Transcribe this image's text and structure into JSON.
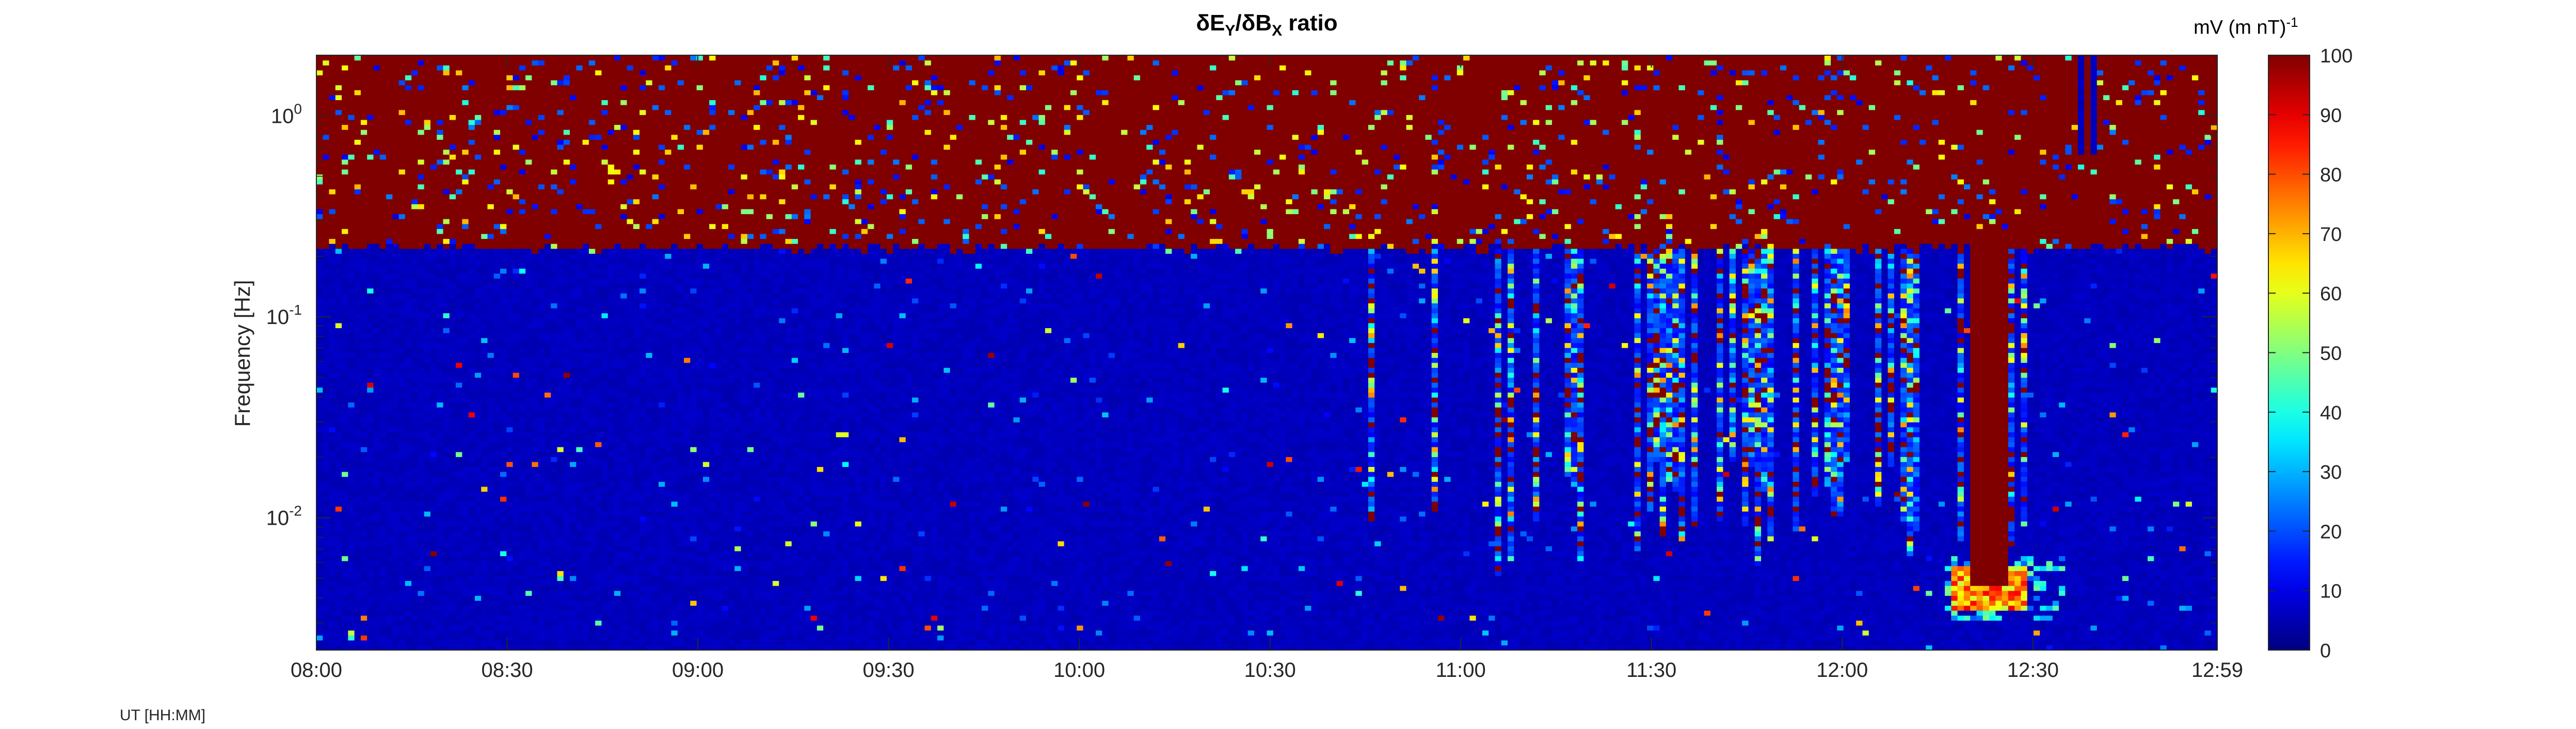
{
  "chart_data": {
    "type": "heatmap",
    "title_parts": {
      "d1": "δE",
      "s1": "Y",
      "slash": "/δB",
      "s2": "X",
      "tail": " ratio"
    },
    "ylabel": "Frequency [Hz]",
    "y_scale": "log",
    "ylim_hz": [
      0.0022,
      2.0
    ],
    "y_ticks": [
      {
        "value": 1,
        "base": "10",
        "exp": "0"
      },
      {
        "value": 0.1,
        "base": "10",
        "exp": "-1"
      },
      {
        "value": 0.01,
        "base": "10",
        "exp": "-2"
      }
    ],
    "xlim_minutes": [
      0,
      299
    ],
    "x_ticks": [
      {
        "minutes": 0,
        "label": "08:00"
      },
      {
        "minutes": 30,
        "label": "08:30"
      },
      {
        "minutes": 60,
        "label": "09:00"
      },
      {
        "minutes": 90,
        "label": "09:30"
      },
      {
        "minutes": 120,
        "label": "10:00"
      },
      {
        "minutes": 150,
        "label": "10:30"
      },
      {
        "minutes": 180,
        "label": "11:00"
      },
      {
        "minutes": 210,
        "label": "11:30"
      },
      {
        "minutes": 240,
        "label": "12:00"
      },
      {
        "minutes": 270,
        "label": "12:30"
      },
      {
        "minutes": 299,
        "label": "12:59"
      }
    ],
    "colorbar": {
      "label_main": "mV (m nT)",
      "label_exp": "-1",
      "range": [
        0,
        100
      ],
      "ticks": [
        0,
        10,
        20,
        30,
        40,
        50,
        60,
        70,
        80,
        90,
        100
      ],
      "colormap": "jet"
    },
    "features": {
      "saturated_band_hz": [
        0.22,
        2.0
      ],
      "background_value": 6,
      "band_gap_start_min": 277,
      "plume_center_min": 263,
      "plume_low_hz": 0.0045
    }
  },
  "footer": {
    "time_label": "UT [HH:MM]"
  },
  "colors": {
    "axis": "#262626",
    "background": "#ffffff"
  }
}
